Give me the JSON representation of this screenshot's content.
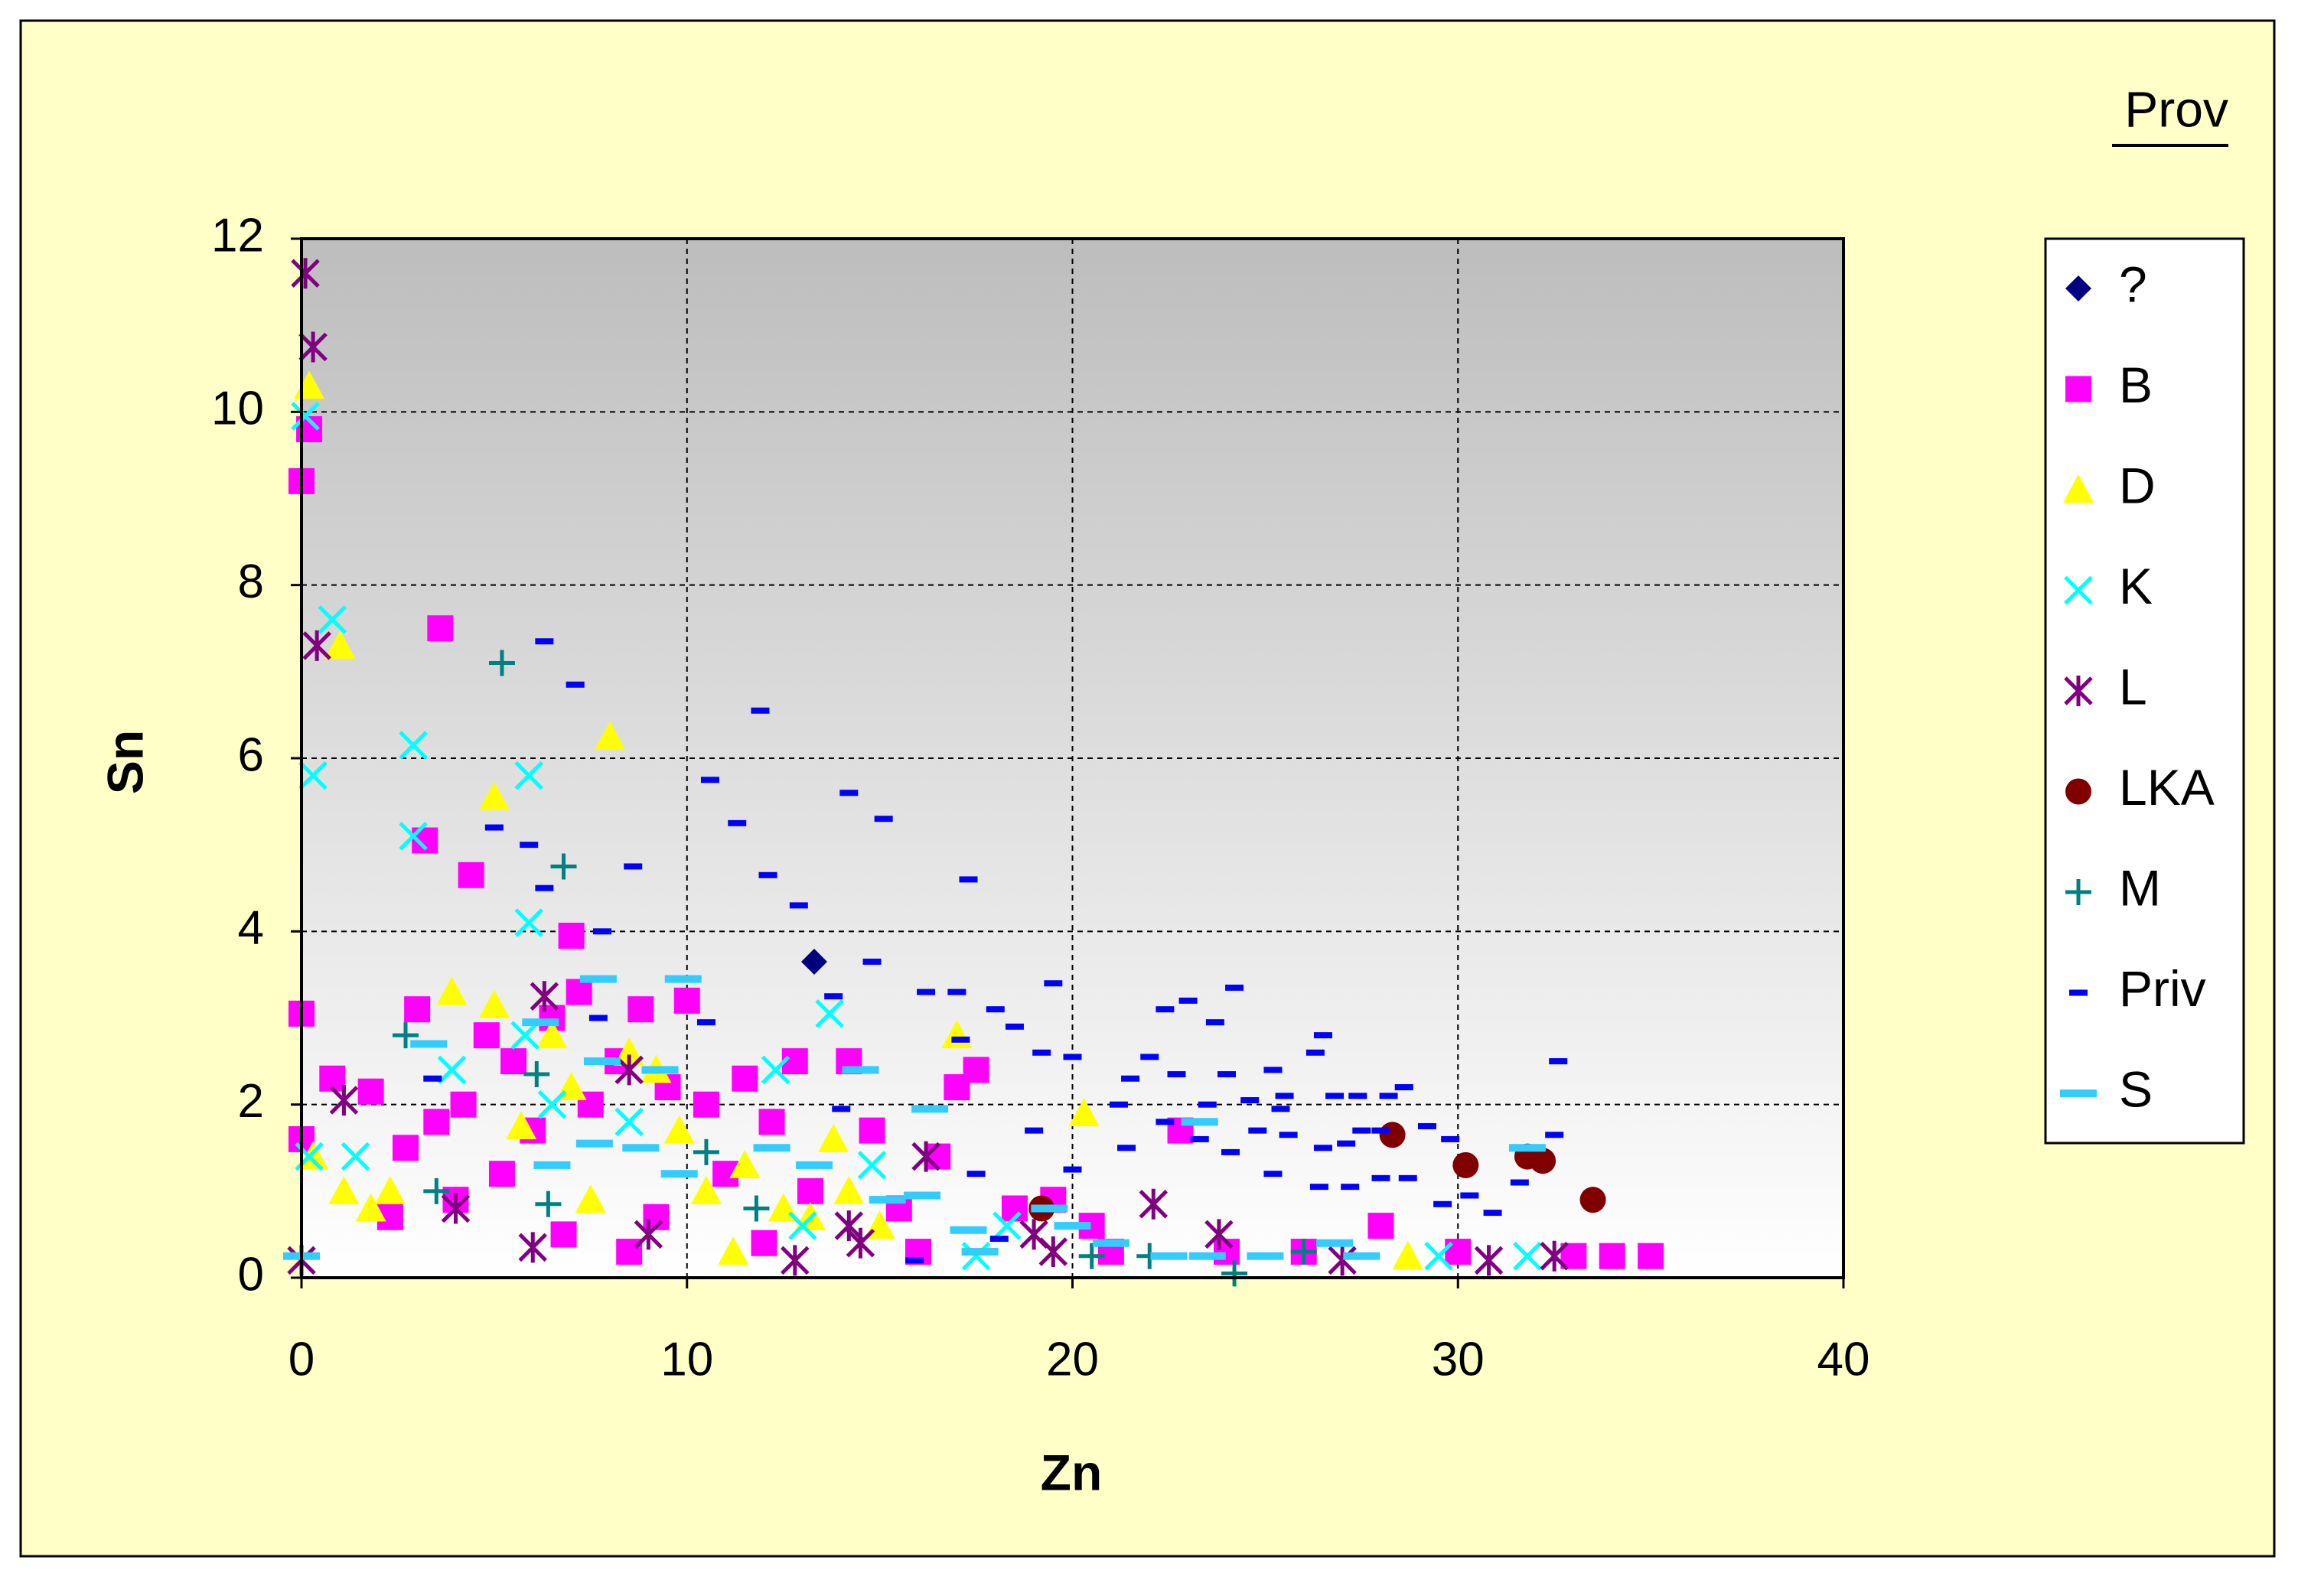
{
  "chart_data": {
    "type": "scatter",
    "x_label": "Zn",
    "y_label": "Sn",
    "legend_title": "Prov",
    "legend_position": "right",
    "grid": true,
    "xlim": [
      0,
      40
    ],
    "xticks": [
      0,
      10,
      20,
      30,
      40
    ],
    "ylim": [
      0,
      12
    ],
    "yticks": [
      0,
      2,
      4,
      6,
      8,
      10,
      12
    ],
    "series": [
      {
        "name": "?",
        "color": "#000080",
        "marker": "diamond",
        "x": [
          13.3
        ],
        "values": [
          3.65
        ]
      },
      {
        "name": "B",
        "color": "#FF00FF",
        "marker": "square",
        "x": [
          0,
          0,
          0,
          0.2,
          0.8,
          1.8,
          3.6,
          3.2,
          4.4,
          7,
          3,
          2.7,
          3.5,
          4.2,
          4.8,
          5.2,
          5.5,
          6,
          6.5,
          7.2,
          7.5,
          8.2,
          8.8,
          9.5,
          10,
          10.5,
          11,
          11.5,
          12.2,
          12.8,
          13.2,
          14.2,
          14.8,
          15.5,
          16.5,
          17,
          17.5,
          18.5,
          19.5,
          20.5,
          22.8,
          24,
          26,
          28,
          30,
          33,
          34,
          35,
          2.3,
          4,
          6.8,
          8.5,
          9.2,
          12,
          16,
          21
        ],
        "values": [
          3.05,
          1.6,
          9.2,
          9.8,
          2.3,
          2.15,
          7.5,
          5.05,
          4.65,
          3.95,
          3.1,
          1.5,
          1.8,
          2.0,
          2.8,
          1.2,
          2.5,
          1.7,
          3.0,
          3.3,
          2.0,
          2.5,
          3.1,
          2.2,
          3.2,
          2.0,
          1.2,
          2.3,
          1.8,
          2.5,
          1.0,
          2.5,
          1.7,
          0.8,
          1.4,
          2.2,
          2.4,
          0.8,
          0.9,
          0.6,
          1.7,
          0.3,
          0.3,
          0.6,
          0.3,
          0.25,
          0.25,
          0.25,
          0.7,
          0.9,
          0.5,
          0.3,
          0.7,
          0.4,
          0.3,
          0.3
        ]
      },
      {
        "name": "D",
        "color": "#FFFF00",
        "marker": "triangle",
        "x": [
          0.2,
          1,
          8,
          5,
          3.9,
          5,
          6.5,
          0.3,
          1.1,
          1.8,
          2.3,
          5.7,
          7,
          8.5,
          9.2,
          9.8,
          10.5,
          11.2,
          11.5,
          12.5,
          13.2,
          13.8,
          15,
          17,
          20.3,
          28.7,
          7.5,
          14.2
        ],
        "values": [
          10.3,
          7.3,
          6.25,
          5.55,
          3.3,
          3.15,
          2.8,
          1.4,
          1.0,
          0.8,
          1.0,
          1.75,
          2.2,
          2.6,
          2.4,
          1.7,
          1.0,
          0.3,
          1.3,
          0.8,
          0.7,
          1.6,
          0.6,
          2.8,
          1.9,
          0.25,
          0.9,
          1.0
        ]
      },
      {
        "name": "K",
        "color": "#00FFFF",
        "marker": "x",
        "x": [
          0.1,
          0.8,
          0.3,
          2.9,
          5.9,
          2.9,
          5.9,
          3.9,
          5.8,
          0.2,
          1.4,
          6.5,
          8.5,
          12.3,
          13.7,
          14.8,
          13,
          18.3,
          17.5,
          29.5,
          31.8,
          32.5
        ],
        "values": [
          9.95,
          7.6,
          5.8,
          6.15,
          5.8,
          5.1,
          4.1,
          2.4,
          2.8,
          1.4,
          1.4,
          2.0,
          1.8,
          2.4,
          3.05,
          1.3,
          0.6,
          0.6,
          0.25,
          0.25,
          0.25,
          0.25
        ]
      },
      {
        "name": "L",
        "color": "#800080",
        "marker": "asterisk",
        "x": [
          0.1,
          0.3,
          0.4,
          1.1,
          6.3,
          8.5,
          4,
          6,
          9,
          12.8,
          14.2,
          16.2,
          19,
          22.1,
          23.8,
          27,
          30.8,
          32.5,
          0,
          14.5,
          19.5
        ],
        "values": [
          11.6,
          10.75,
          7.3,
          2.05,
          3.25,
          2.4,
          0.8,
          0.35,
          0.5,
          0.2,
          0.6,
          1.4,
          0.5,
          0.85,
          0.5,
          0.2,
          0.2,
          0.25,
          0.2,
          0.4,
          0.3
        ]
      },
      {
        "name": "LKA",
        "color": "#800000",
        "marker": "circle",
        "x": [
          28.3,
          19.2,
          30.2,
          31.8,
          32.2,
          33.5
        ],
        "values": [
          1.65,
          0.8,
          1.3,
          1.4,
          1.35,
          0.9
        ]
      },
      {
        "name": "M",
        "color": "#008080",
        "marker": "plus",
        "x": [
          5.2,
          6.8,
          2.7,
          6.1,
          3.5,
          6.4,
          10.5,
          11.8,
          20.5,
          22,
          24.2,
          26
        ],
        "values": [
          7.1,
          4.75,
          2.8,
          2.35,
          1.0,
          0.85,
          1.45,
          0.8,
          0.25,
          0.25,
          0.05,
          0.3
        ]
      },
      {
        "name": "Priv",
        "color": "#0000FF",
        "marker": "dash",
        "x": [
          6.3,
          7.1,
          11.9,
          10.6,
          14.2,
          15.1,
          11.3,
          5,
          5.9,
          8.6,
          12.1,
          12.9,
          17.3,
          6.3,
          7.8,
          14.8,
          16.2,
          17,
          18,
          17.1,
          19.5,
          22.4,
          23,
          24.2,
          18.5,
          19.2,
          20,
          22,
          23.7,
          25.2,
          26.3,
          26.5,
          21.5,
          22.7,
          24,
          25.5,
          26.8,
          27.4,
          28.2,
          28.6,
          21.2,
          23.5,
          24.6,
          25.4,
          22.4,
          23.3,
          24.1,
          24.8,
          25.6,
          26.5,
          27.1,
          27.5,
          28,
          29.2,
          29.8,
          19,
          20,
          21.4,
          25.2,
          26.4,
          27.2,
          28,
          28.7,
          29.6,
          30.3,
          30.9,
          31.6,
          32.5,
          32.6,
          3.4,
          7.7,
          10.5,
          13.8,
          14,
          17.5,
          18.1,
          15.9
        ],
        "values": [
          7.35,
          6.85,
          6.55,
          5.75,
          5.6,
          5.3,
          5.25,
          5.2,
          5.0,
          4.75,
          4.65,
          4.3,
          4.6,
          4.5,
          4.0,
          3.65,
          3.3,
          3.3,
          3.1,
          2.75,
          3.4,
          3.1,
          3.2,
          3.35,
          2.9,
          2.6,
          2.55,
          2.55,
          2.95,
          2.4,
          2.6,
          2.8,
          2.3,
          2.35,
          2.35,
          2.1,
          2.1,
          2.1,
          2.1,
          2.2,
          2.0,
          2.0,
          2.05,
          1.95,
          1.8,
          1.6,
          1.45,
          1.7,
          1.65,
          1.5,
          1.55,
          1.7,
          1.7,
          1.75,
          1.6,
          1.7,
          1.25,
          1.5,
          1.2,
          1.05,
          1.05,
          1.15,
          1.15,
          0.85,
          0.95,
          0.75,
          1.1,
          1.65,
          2.5,
          2.3,
          3.0,
          2.95,
          3.25,
          1.95,
          1.2,
          0.45,
          0.2
        ]
      },
      {
        "name": "S",
        "color": "#33CCFF",
        "marker": "longdash",
        "x": [
          0,
          3.3,
          7.7,
          9.9,
          6.2,
          7.8,
          9.3,
          14.5,
          16.3,
          6.5,
          7.6,
          8.8,
          9.8,
          12.2,
          13.3,
          15.2,
          16.1,
          17.3,
          19.4,
          20,
          21,
          22.5,
          23.5,
          25,
          26.8,
          27.5,
          31.8,
          23.3,
          17.6
        ],
        "values": [
          0.25,
          2.7,
          3.45,
          3.45,
          2.95,
          2.5,
          2.4,
          2.4,
          1.95,
          1.3,
          1.55,
          1.5,
          1.2,
          1.5,
          1.3,
          0.9,
          0.95,
          0.55,
          0.8,
          0.6,
          0.4,
          0.25,
          0.25,
          0.25,
          0.4,
          0.25,
          1.5,
          1.8,
          0.3
        ]
      }
    ]
  }
}
